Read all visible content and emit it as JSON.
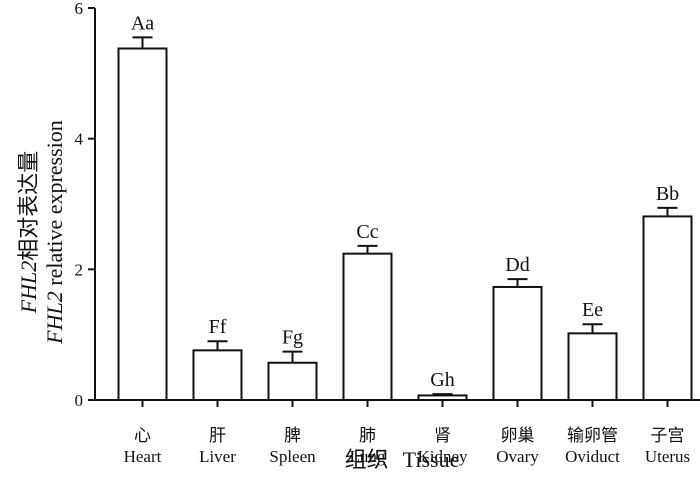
{
  "chart_data": {
    "type": "bar",
    "categories": [
      {
        "cn": "心",
        "en": "Heart"
      },
      {
        "cn": "肝",
        "en": "Liver"
      },
      {
        "cn": "脾",
        "en": "Spleen"
      },
      {
        "cn": "肺",
        "en": "Lung"
      },
      {
        "cn": "肾",
        "en": "Kidney"
      },
      {
        "cn": "卵巢",
        "en": "Ovary"
      },
      {
        "cn": "输卵管",
        "en": "Oviduct"
      },
      {
        "cn": "子宫",
        "en": "Uterus"
      }
    ],
    "values": [
      5.38,
      0.76,
      0.57,
      2.24,
      0.07,
      1.73,
      1.02,
      2.81
    ],
    "errors": [
      0.17,
      0.14,
      0.17,
      0.12,
      0.02,
      0.12,
      0.14,
      0.13
    ],
    "significance": [
      "Aa",
      "Ff",
      "Fg",
      "Cc",
      "Gh",
      "Dd",
      "Ee",
      "Bb"
    ],
    "ylim": [
      0,
      6
    ],
    "yticks": [
      0,
      2,
      4,
      6
    ],
    "xlabel": {
      "cn": "组织",
      "en": "Tissue"
    },
    "ylabel": {
      "gene": "FHL2",
      "line1_cn": "相对表达量",
      "line2_en": " relative expression"
    },
    "grid": false,
    "colors": {
      "bar_fill": "#ffffff",
      "stroke": "#111111"
    }
  }
}
